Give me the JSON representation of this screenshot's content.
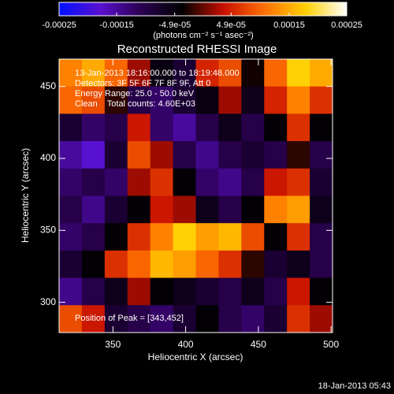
{
  "chart_data": {
    "type": "heatmap",
    "title": "Reconstructed RHESSI Image",
    "xlabel": "Heliocentric X (arcsec)",
    "ylabel": "Heliocentric Y (arcsec)",
    "xlim": [
      313,
      501
    ],
    "ylim": [
      279,
      469
    ],
    "xticks": [
      350,
      400,
      450,
      500
    ],
    "yticks": [
      300,
      350,
      400,
      450
    ],
    "colorbar": {
      "label": "(photons cm⁻² s⁻¹ asec⁻²)",
      "lim": [
        -0.00025,
        0.00025
      ],
      "ticks": [
        -0.00025,
        -0.00015,
        {
          "value": -4.9e-05,
          "label": "-4.9e-05"
        },
        {
          "value": 4.9e-05,
          "label": "4.9e-05"
        },
        0.00015,
        0.00025
      ],
      "colormap": [
        "#0010ff",
        "#5a10d0",
        "#2a0050",
        "#000000",
        "#c81000",
        "#ff7000",
        "#ffd000",
        "#ffffff"
      ]
    },
    "annotations": [
      "13-Jan-2013 18:16:00.000 to 18:19:48.000",
      "Detectors: 3F 5F 6F 7F 8F 9F, Att 0",
      "Energy Range: 25.0 - 50.0 keV",
      "Clean    Total counts: 4.60E+03"
    ],
    "peak_label": "Position of Peak = [343,452]",
    "footer": "18-Jan-2013 05:43",
    "values": [
      [
        0.00012,
        0.00015,
        0.0001,
        2e-05,
        -5e-05,
        -8e-05,
        5e-05,
        8e-05,
        -3e-05,
        0.0001,
        0.00018,
        0.00015
      ],
      [
        0.0001,
        8e-05,
        -2e-05,
        -0.0001,
        -0.00012,
        -8e-05,
        -5e-05,
        2e-05,
        -6e-05,
        5e-05,
        0.00012,
        6e-05
      ],
      [
        -8e-05,
        -0.00012,
        -0.0001,
        4e-05,
        -0.00012,
        -0.00015,
        -0.0001,
        -6e-05,
        -0.0001,
        -4e-05,
        6e-05,
        -4e-05
      ],
      [
        -0.00015,
        -0.00018,
        -8e-05,
        8e-05,
        2e-05,
        -0.0001,
        -0.00014,
        -0.0001,
        -8e-05,
        -0.0001,
        -2e-05,
        -0.0001
      ],
      [
        -0.00012,
        -0.0001,
        -0.00012,
        2e-05,
        6e-05,
        -4e-05,
        -0.00012,
        -0.00014,
        -0.0001,
        4e-05,
        6e-05,
        -8e-05
      ],
      [
        -0.0001,
        -0.00014,
        -8e-05,
        -4e-05,
        4e-05,
        2e-05,
        -6e-05,
        -0.0001,
        -4e-05,
        0.00012,
        0.00014,
        -6e-05
      ],
      [
        -0.00012,
        -0.0001,
        -4e-05,
        6e-05,
        0.00012,
        0.00018,
        0.00014,
        0.00016,
        8e-05,
        -4e-05,
        6e-05,
        -0.0001
      ],
      [
        -8e-05,
        -4e-05,
        6e-05,
        0.0001,
        0.00016,
        0.00014,
        0.0001,
        6e-05,
        -2e-05,
        -8e-05,
        -6e-05,
        -0.0001
      ],
      [
        -0.00014,
        -0.0001,
        -6e-05,
        2e-05,
        -4e-05,
        -6e-05,
        -8e-05,
        -0.0001,
        -6e-05,
        -0.0001,
        4e-05,
        -4e-05
      ],
      [
        8e-05,
        4e-05,
        -8e-05,
        -0.0001,
        -0.00012,
        -8e-05,
        -4e-05,
        -0.0001,
        -0.00012,
        -8e-05,
        6e-05,
        2e-05
      ]
    ]
  }
}
